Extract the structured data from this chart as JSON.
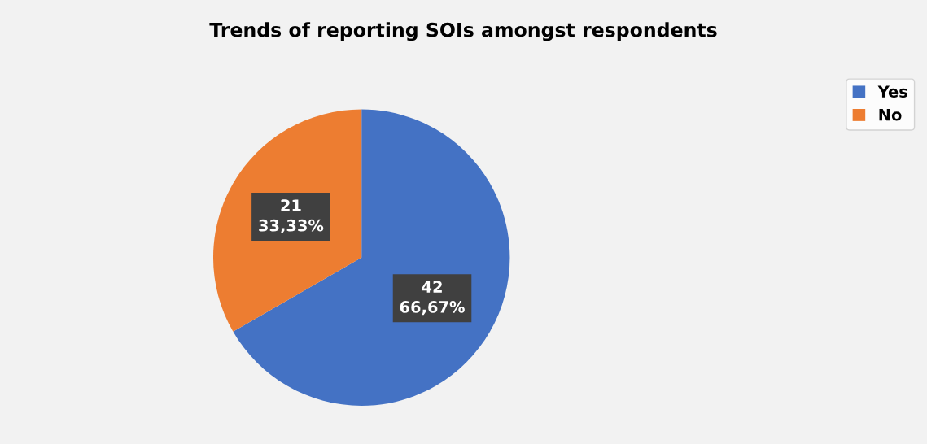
{
  "chart_data": {
    "type": "pie",
    "title": "Trends of reporting SOIs amongst respondents",
    "categories": [
      "Yes",
      "No"
    ],
    "values": [
      42,
      21
    ],
    "colors": [
      "#4472c4",
      "#ed7d31"
    ],
    "value_labels": [
      "42\n66,67%",
      "21\n33,33%"
    ],
    "legend": "right"
  }
}
